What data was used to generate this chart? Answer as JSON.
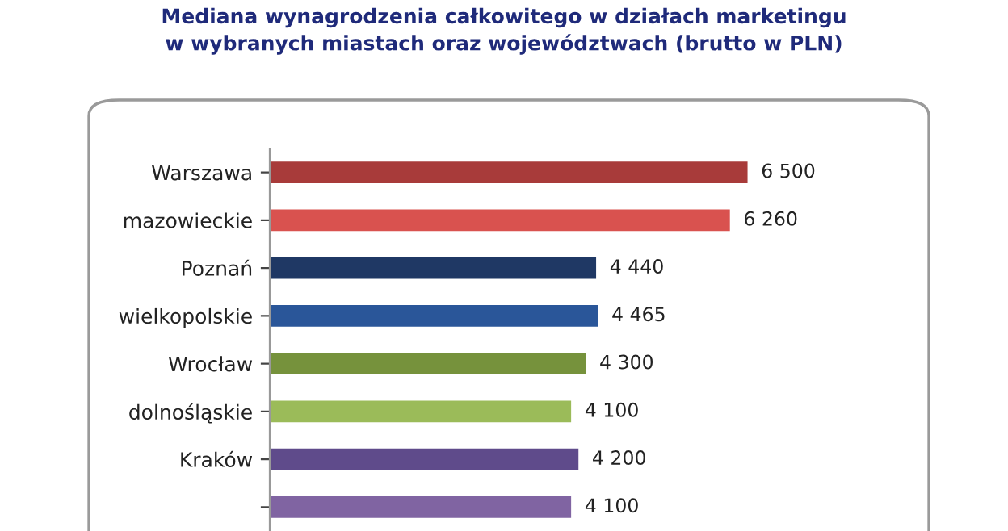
{
  "chart_data": {
    "type": "bar",
    "orientation": "horizontal",
    "title": "Mediana wynagrodzenia całkowitego w działach marketingu\nw wybranych miastach oraz województwach (brutto w PLN)",
    "categories": [
      "Warszawa",
      "mazowieckie",
      "Poznań",
      "wielkopolskie",
      "Wrocław",
      "dolnośląskie",
      "Kraków",
      null
    ],
    "values": [
      6500,
      6260,
      4440,
      4465,
      4300,
      4100,
      4200,
      4100
    ],
    "value_labels": [
      "6 500",
      "6 260",
      "4 440",
      "4 465",
      "4 300",
      "4 100",
      "4 200",
      "4 100"
    ],
    "colors": [
      "#a83b3a",
      "#d9524f",
      "#1f3864",
      "#2a5699",
      "#76923c",
      "#9bbb59",
      "#5f4b8b",
      "#8064a2"
    ],
    "tick_labels": "y",
    "grid": false,
    "legend": false
  }
}
